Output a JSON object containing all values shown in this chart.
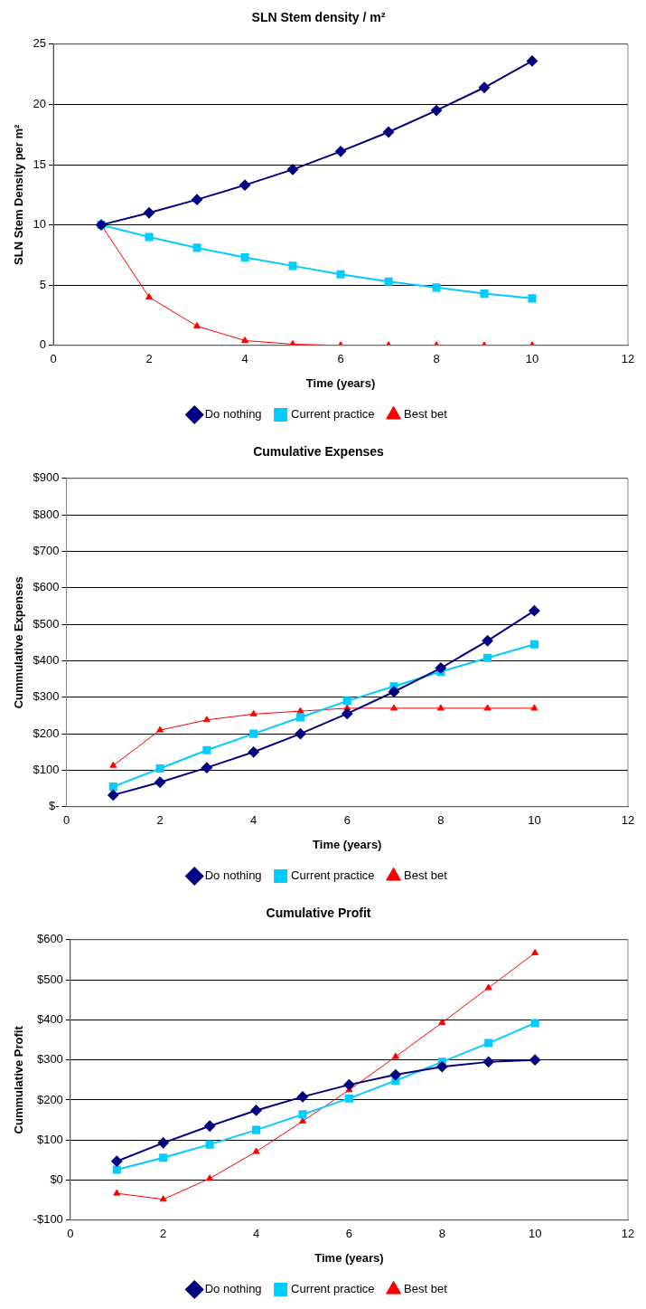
{
  "chart_data": [
    {
      "type": "line",
      "title": "SLN Stem density / m²",
      "xlabel": "Time (years)",
      "ylabel": "SLN Stem Density per m²",
      "x": [
        1,
        2,
        3,
        4,
        5,
        6,
        7,
        8,
        9,
        10
      ],
      "xlim": [
        0,
        12
      ],
      "xticks": [
        0,
        2,
        4,
        6,
        8,
        10,
        12
      ],
      "ylim": [
        0,
        25
      ],
      "yticks": [
        0,
        5,
        10,
        15,
        20,
        25
      ],
      "grid": "y",
      "legend": "bottom",
      "series": [
        {
          "name": "Do nothing",
          "color": "#000080",
          "marker": "diamond",
          "values": [
            10,
            11,
            12.1,
            13.3,
            14.6,
            16.1,
            17.7,
            19.5,
            21.4,
            23.6
          ]
        },
        {
          "name": "Current practice",
          "color": "#00ccff",
          "marker": "square",
          "values": [
            10,
            9,
            8.1,
            7.3,
            6.6,
            5.9,
            5.3,
            4.8,
            4.3,
            3.9
          ]
        },
        {
          "name": "Best bet",
          "color": "#ff0000",
          "marker": "triangle",
          "values": [
            10,
            4,
            1.6,
            0.4,
            0.1,
            0,
            0,
            0,
            0,
            0
          ]
        }
      ]
    },
    {
      "type": "line",
      "title": "Cumulative Expenses",
      "xlabel": "Time (years)",
      "ylabel": "Cummulative Expenses",
      "x": [
        1,
        2,
        3,
        4,
        5,
        6,
        7,
        8,
        9,
        10
      ],
      "xlim": [
        0,
        12
      ],
      "xticks": [
        0,
        2,
        4,
        6,
        8,
        10,
        12
      ],
      "ylim": [
        0,
        900
      ],
      "yticks": [
        {
          "value": 0,
          "label": "$-"
        },
        {
          "value": 100,
          "label": "$100"
        },
        {
          "value": 200,
          "label": "$200"
        },
        {
          "value": 300,
          "label": "$300"
        },
        {
          "value": 400,
          "label": "$400"
        },
        {
          "value": 500,
          "label": "$500"
        },
        {
          "value": 600,
          "label": "$600"
        },
        {
          "value": 700,
          "label": "$700"
        },
        {
          "value": 800,
          "label": "$800"
        },
        {
          "value": 900,
          "label": "$900"
        }
      ],
      "grid": "y",
      "legend": "bottom",
      "series": [
        {
          "name": "Do nothing",
          "color": "#000080",
          "marker": "diamond",
          "values": [
            32,
            67,
            107,
            150,
            200,
            255,
            315,
            380,
            455,
            537
          ]
        },
        {
          "name": "Current practice",
          "color": "#00ccff",
          "marker": "square",
          "values": [
            55,
            105,
            155,
            200,
            245,
            290,
            330,
            370,
            408,
            445
          ]
        },
        {
          "name": "Best bet",
          "color": "#ff0000",
          "marker": "triangle",
          "values": [
            113,
            210,
            238,
            254,
            262,
            270,
            270,
            270,
            270,
            270
          ]
        }
      ]
    },
    {
      "type": "line",
      "title": "Cumulative Profit",
      "xlabel": "Time (years)",
      "ylabel": "Cummulative Profit",
      "x": [
        1,
        2,
        3,
        4,
        5,
        6,
        7,
        8,
        9,
        10
      ],
      "xlim": [
        0,
        12
      ],
      "xticks": [
        0,
        2,
        4,
        6,
        8,
        10,
        12
      ],
      "ylim": [
        -100,
        600
      ],
      "yticks": [
        {
          "value": -100,
          "label": "-$100"
        },
        {
          "value": 0,
          "label": "$0"
        },
        {
          "value": 100,
          "label": "$100"
        },
        {
          "value": 200,
          "label": "$200"
        },
        {
          "value": 300,
          "label": "$300"
        },
        {
          "value": 400,
          "label": "$400"
        },
        {
          "value": 500,
          "label": "$500"
        },
        {
          "value": 600,
          "label": "$600"
        }
      ],
      "grid": "y",
      "legend": "bottom",
      "series": [
        {
          "name": "Do nothing",
          "color": "#000080",
          "marker": "diamond",
          "values": [
            47,
            93,
            135,
            174,
            208,
            238,
            263,
            283,
            295,
            300
          ]
        },
        {
          "name": "Current practice",
          "color": "#00ccff",
          "marker": "square",
          "values": [
            26,
            56,
            89,
            125,
            164,
            204,
            248,
            295,
            342,
            392
          ]
        },
        {
          "name": "Best bet",
          "color": "#ff0000",
          "marker": "triangle",
          "values": [
            -33,
            -48,
            4,
            71,
            147,
            225,
            308,
            393,
            480,
            567
          ]
        }
      ]
    }
  ]
}
